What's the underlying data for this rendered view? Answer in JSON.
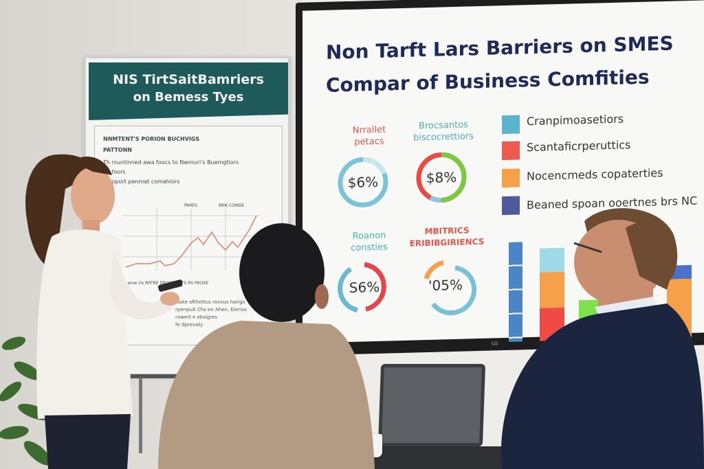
{
  "flipchart": {
    "header": [
      "NIS TirtSaitBamriers",
      "on Bemess Tyes"
    ],
    "lines": [
      "NNMTENT'S PORION BUCHVIGS",
      "PATTONN",
      "Th rsuntinned awa foocs to Nwmuri's Buemgtiors",
      "ho foors",
      "rspoport penmat comahiors"
    ],
    "chart_legend": [
      "PARES",
      "BRN COMDE"
    ],
    "x_labels": "Ts  wnw  rrs  RRTRE  DROSE  NRTS RS PROSE",
    "footnotes": [
      "rsote ofthettus rovous hairgs",
      "rpenpuit Chs en Ahen, Elerios",
      "rawert e ebsigres",
      "fe dprevaty"
    ]
  },
  "screen": {
    "title": [
      "Non Tarft Lars Barriers on SMES",
      "Compar of Business Comfities"
    ],
    "donuts": [
      {
        "label": [
          "Nrrallet",
          "petacs"
        ],
        "value": "$6%",
        "label_color": "#e2574c"
      },
      {
        "label": [
          "Brocsantos",
          "biscocrettiors"
        ],
        "value": "$8%",
        "label_color": "#4bb0a8"
      },
      {
        "label": [
          "Roanon",
          "consties"
        ],
        "value": "S6%",
        "label_color": "#4bb0a8"
      },
      {
        "label": [
          "MBITRICS",
          "ERIBIBGIRIENCS"
        ],
        "value": "'05%",
        "label_color": "#e2574c"
      }
    ],
    "legend": [
      {
        "label": "Cranpimoasetiors",
        "color": "#5ab4cc"
      },
      {
        "label": "Scantaficrperuttics",
        "color": "#ef5a50"
      },
      {
        "label": "Nocencmeds copaterties",
        "color": "#f6a04a"
      },
      {
        "label": "Beaned spoan ooertnes brs NC",
        "color": "#4f5a9c"
      }
    ],
    "brand": "LG"
  },
  "colors": {
    "navy": "#1f2a56",
    "teal": "#1f5a5a",
    "blue": "#4a86c5",
    "green": "#7ac943"
  }
}
